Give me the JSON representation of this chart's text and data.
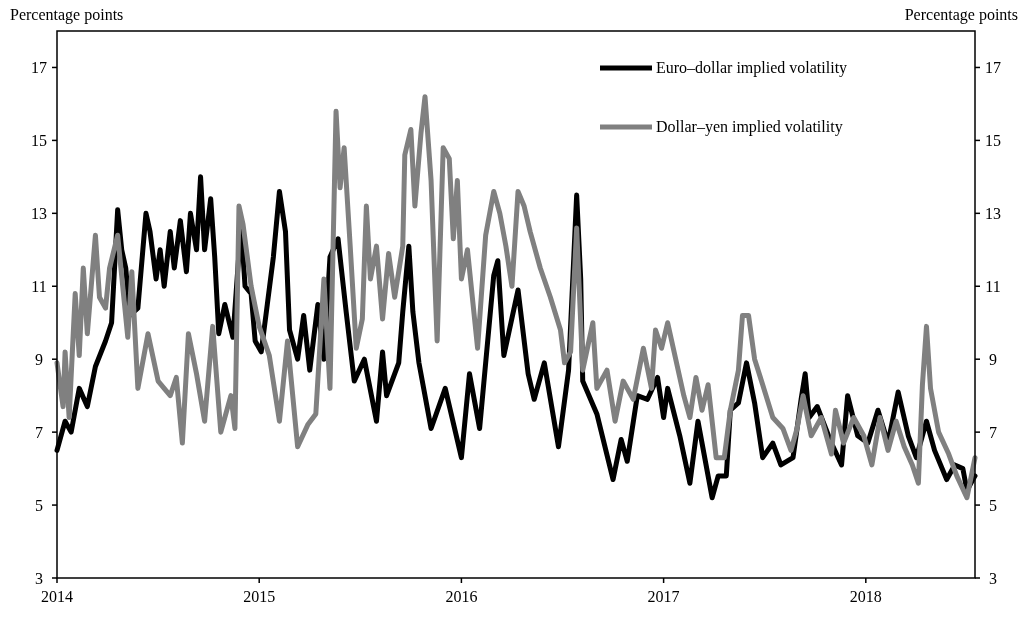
{
  "chart_data": {
    "type": "line",
    "ylabel": "Percentage points",
    "y2label": "Percentage points",
    "xlim": [
      2014,
      2018.54
    ],
    "xticks": [
      2014,
      2015,
      2016,
      2017,
      2018
    ],
    "ylim": [
      3,
      18
    ],
    "yticks": [
      3,
      5,
      7,
      9,
      11,
      13,
      15,
      17
    ],
    "y2lim": [
      3,
      18
    ],
    "y2ticks": [
      3,
      5,
      7,
      9,
      11,
      13,
      15,
      17
    ],
    "legend": "top right",
    "line_style": "solid",
    "series": [
      {
        "name": "Euro–dollar implied volatility",
        "color": "#000000",
        "x": [
          2014.0,
          2014.04,
          2014.07,
          2014.11,
          2014.15,
          2014.19,
          2014.24,
          2014.27,
          2014.3,
          2014.32,
          2014.34,
          2014.36,
          2014.4,
          2014.44,
          2014.46,
          2014.49,
          2014.51,
          2014.53,
          2014.56,
          2014.58,
          2014.61,
          2014.64,
          2014.66,
          2014.69,
          2014.71,
          2014.73,
          2014.76,
          2014.78,
          2014.8,
          2014.83,
          2014.87,
          2014.91,
          2014.93,
          2014.96,
          2014.98,
          2015.01,
          2015.04,
          2015.07,
          2015.1,
          2015.13,
          2015.15,
          2015.19,
          2015.22,
          2015.25,
          2015.29,
          2015.32,
          2015.35,
          2015.39,
          2015.43,
          2015.47,
          2015.52,
          2015.58,
          2015.61,
          2015.63,
          2015.69,
          2015.71,
          2015.74,
          2015.76,
          2015.79,
          2015.85,
          2015.92,
          2016.0,
          2016.04,
          2016.09,
          2016.16,
          2016.18,
          2016.21,
          2016.28,
          2016.33,
          2016.36,
          2016.41,
          2016.48,
          2016.53,
          2016.57,
          2016.59,
          2016.6,
          2016.67,
          2016.75,
          2016.79,
          2016.82,
          2016.87,
          2016.92,
          2016.97,
          2017.0,
          2017.02,
          2017.08,
          2017.13,
          2017.17,
          2017.24,
          2017.27,
          2017.31,
          2017.33,
          2017.37,
          2017.41,
          2017.45,
          2017.49,
          2017.54,
          2017.58,
          2017.64,
          2017.68,
          2017.7,
          2017.72,
          2017.76,
          2017.83,
          2017.88,
          2017.91,
          2017.96,
          2018.01,
          2018.06,
          2018.11,
          2018.16,
          2018.21,
          2018.25,
          2018.3,
          2018.34,
          2018.4,
          2018.44,
          2018.48,
          2018.5,
          2018.54
        ],
        "values": [
          6.5,
          7.3,
          7.0,
          8.2,
          7.7,
          8.8,
          9.5,
          10.0,
          13.1,
          12.0,
          11.5,
          10.2,
          10.4,
          13.0,
          12.5,
          11.2,
          12.0,
          11.0,
          12.5,
          11.5,
          12.8,
          11.4,
          13.0,
          12.0,
          14.0,
          12.0,
          13.4,
          11.8,
          9.7,
          10.5,
          9.6,
          12.7,
          11.0,
          10.8,
          9.5,
          9.2,
          10.5,
          11.8,
          13.6,
          12.5,
          9.8,
          9.0,
          10.2,
          8.7,
          10.5,
          9.0,
          11.8,
          12.3,
          10.3,
          8.4,
          9.0,
          7.3,
          9.2,
          8.0,
          8.9,
          10.3,
          12.1,
          10.3,
          8.9,
          7.1,
          8.2,
          6.3,
          8.6,
          7.1,
          11.3,
          11.7,
          9.1,
          10.9,
          8.6,
          7.9,
          8.9,
          6.6,
          8.7,
          13.5,
          11.2,
          8.4,
          7.5,
          5.7,
          6.8,
          6.2,
          8.0,
          7.9,
          8.5,
          7.4,
          8.2,
          6.9,
          5.6,
          7.3,
          5.2,
          5.8,
          5.8,
          7.6,
          7.8,
          8.9,
          7.8,
          6.3,
          6.7,
          6.1,
          6.3,
          7.9,
          8.6,
          7.4,
          7.7,
          6.7,
          6.1,
          8.0,
          6.9,
          6.7,
          7.6,
          6.7,
          8.1,
          6.9,
          6.3,
          7.3,
          6.5,
          5.7,
          6.1,
          6.0,
          5.4,
          5.8
        ]
      },
      {
        "name": "Dollar–yen implied volatility",
        "color": "#808080",
        "x": [
          2014.0,
          2014.03,
          2014.04,
          2014.06,
          2014.09,
          2014.11,
          2014.13,
          2014.15,
          2014.19,
          2014.21,
          2014.24,
          2014.26,
          2014.3,
          2014.35,
          2014.37,
          2014.4,
          2014.45,
          2014.5,
          2014.56,
          2014.59,
          2014.62,
          2014.65,
          2014.69,
          2014.73,
          2014.77,
          2014.81,
          2014.86,
          2014.88,
          2014.9,
          2014.92,
          2014.96,
          2015.0,
          2015.05,
          2015.1,
          2015.14,
          2015.19,
          2015.24,
          2015.28,
          2015.32,
          2015.35,
          2015.38,
          2015.4,
          2015.42,
          2015.45,
          2015.48,
          2015.51,
          2015.53,
          2015.55,
          2015.58,
          2015.61,
          2015.64,
          2015.67,
          2015.71,
          2015.72,
          2015.75,
          2015.77,
          2015.8,
          2015.82,
          2015.85,
          2015.88,
          2015.91,
          2015.94,
          2015.96,
          2015.98,
          2016.0,
          2016.03,
          2016.08,
          2016.12,
          2016.16,
          2016.19,
          2016.22,
          2016.25,
          2016.28,
          2016.31,
          2016.34,
          2016.39,
          2016.44,
          2016.49,
          2016.51,
          2016.54,
          2016.57,
          2016.6,
          2016.65,
          2016.67,
          2016.72,
          2016.76,
          2016.8,
          2016.85,
          2016.9,
          2016.94,
          2016.96,
          2016.99,
          2017.02,
          2017.06,
          2017.1,
          2017.13,
          2017.16,
          2017.19,
          2017.22,
          2017.26,
          2017.3,
          2017.33,
          2017.37,
          2017.39,
          2017.42,
          2017.45,
          2017.49,
          2017.54,
          2017.59,
          2017.63,
          2017.66,
          2017.69,
          2017.73,
          2017.78,
          2017.83,
          2017.85,
          2017.89,
          2017.94,
          2017.99,
          2018.03,
          2018.07,
          2018.11,
          2018.15,
          2018.19,
          2018.23,
          2018.26,
          2018.28,
          2018.3,
          2018.32,
          2018.36,
          2018.41,
          2018.45,
          2018.5,
          2018.54
        ],
        "values": [
          8.9,
          7.7,
          9.2,
          7.4,
          10.8,
          9.1,
          11.5,
          9.7,
          12.4,
          10.7,
          10.4,
          11.5,
          12.4,
          9.6,
          11.4,
          8.2,
          9.7,
          8.4,
          8.0,
          8.5,
          6.7,
          9.7,
          8.6,
          7.3,
          9.9,
          7.0,
          8.0,
          7.1,
          13.2,
          12.7,
          11.0,
          9.9,
          9.1,
          7.3,
          9.5,
          6.6,
          7.2,
          7.5,
          11.2,
          8.2,
          15.8,
          13.7,
          14.8,
          12.1,
          9.3,
          10.1,
          13.2,
          11.2,
          12.1,
          10.1,
          11.9,
          10.7,
          12.1,
          14.6,
          15.3,
          13.2,
          15.2,
          16.2,
          13.9,
          9.5,
          14.8,
          14.5,
          12.3,
          13.9,
          11.2,
          12.0,
          9.3,
          12.4,
          13.6,
          13.0,
          12.1,
          11.0,
          13.6,
          13.2,
          12.5,
          11.5,
          10.7,
          9.8,
          8.9,
          9.2,
          12.6,
          8.7,
          10.0,
          8.2,
          8.7,
          7.3,
          8.4,
          7.9,
          9.3,
          8.2,
          9.8,
          9.3,
          10.0,
          9.0,
          8.0,
          7.4,
          8.5,
          7.6,
          8.3,
          6.3,
          6.3,
          7.6,
          8.7,
          10.2,
          10.2,
          9.0,
          8.3,
          7.4,
          7.1,
          6.5,
          7.1,
          8.0,
          6.9,
          7.4,
          6.4,
          7.6,
          6.7,
          7.4,
          6.9,
          6.1,
          7.4,
          6.5,
          7.3,
          6.6,
          6.1,
          5.6,
          8.3,
          9.9,
          8.2,
          7.0,
          6.4,
          5.8,
          5.2,
          6.3
        ]
      }
    ]
  }
}
